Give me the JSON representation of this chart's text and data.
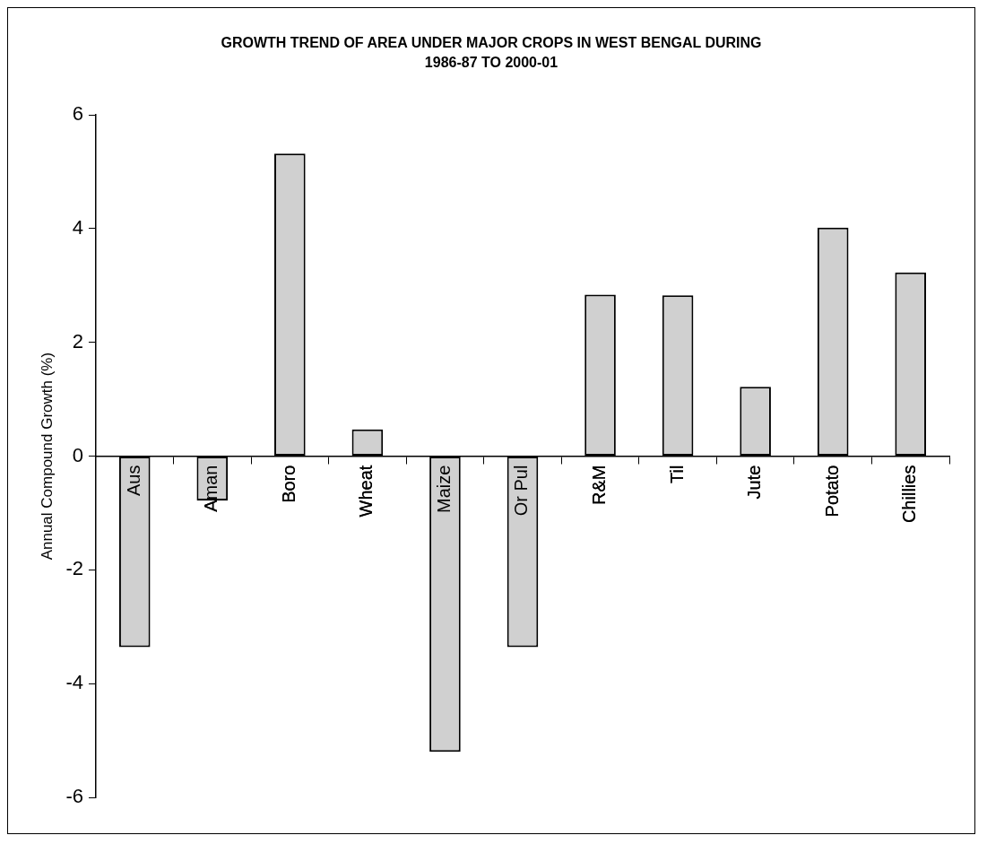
{
  "chart_data": {
    "type": "bar",
    "title": [
      "GROWTH TREND OF AREA UNDER MAJOR CROPS IN WEST BENGAL DURING",
      "1986-87 TO 2000-01"
    ],
    "ylabel": "Annual Compound Growth (%)",
    "categories": [
      "Aus",
      "Aman",
      "Boro",
      "Wheat",
      "Maize",
      "Or Pul",
      "R&M",
      "Til",
      "Jute",
      "Potato",
      "Chillies"
    ],
    "values": [
      -3.36,
      -0.78,
      5.32,
      0.47,
      -5.2,
      -3.36,
      2.84,
      2.83,
      1.22,
      4.02,
      3.23
    ],
    "color": "#d0d0d0",
    "ylim": [
      -6,
      6
    ],
    "yticks": [
      -6,
      -4,
      -2,
      0,
      2,
      4,
      6
    ],
    "grid": false,
    "legend": false
  }
}
